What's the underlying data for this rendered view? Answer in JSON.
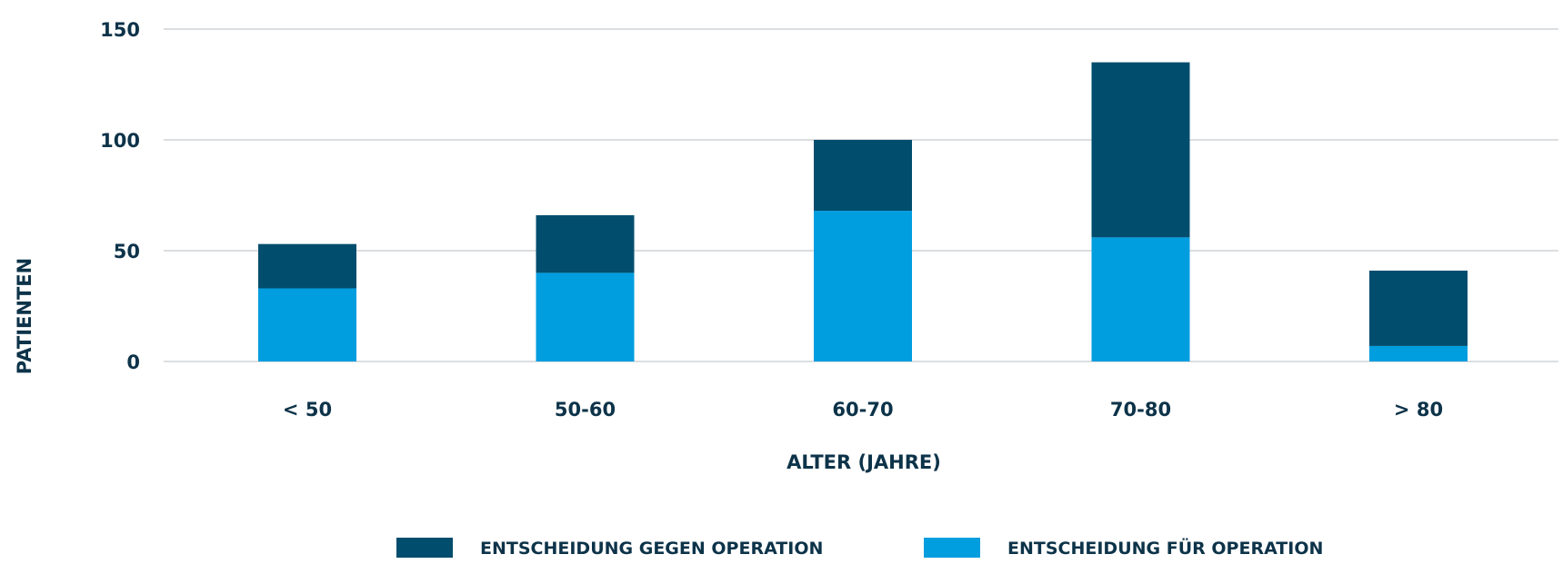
{
  "chart_data": {
    "type": "bar",
    "stacked": true,
    "title": "",
    "xlabel": "ALTER (JAHRE)",
    "ylabel": "PATIENTEN",
    "categories": [
      "< 50",
      "50-60",
      "60-70",
      "70-80",
      "> 80"
    ],
    "ylim": [
      0,
      150
    ],
    "yticks": [
      "0",
      "50",
      "100",
      "150"
    ],
    "grid": true,
    "legend_position": "bottom",
    "series": [
      {
        "name": "ENTSCHEIDUNG FÜR OPERATION",
        "color": "#009ddf",
        "values": [
          33,
          40,
          68,
          56,
          7
        ]
      },
      {
        "name": "ENTSCHEIDUNG GEGEN OPERATION",
        "color": "#004d6e",
        "values": [
          20,
          26,
          32,
          79,
          34
        ]
      }
    ],
    "legend_order": [
      "ENTSCHEIDUNG GEGEN OPERATION",
      "ENTSCHEIDUNG FÜR OPERATION"
    ]
  }
}
